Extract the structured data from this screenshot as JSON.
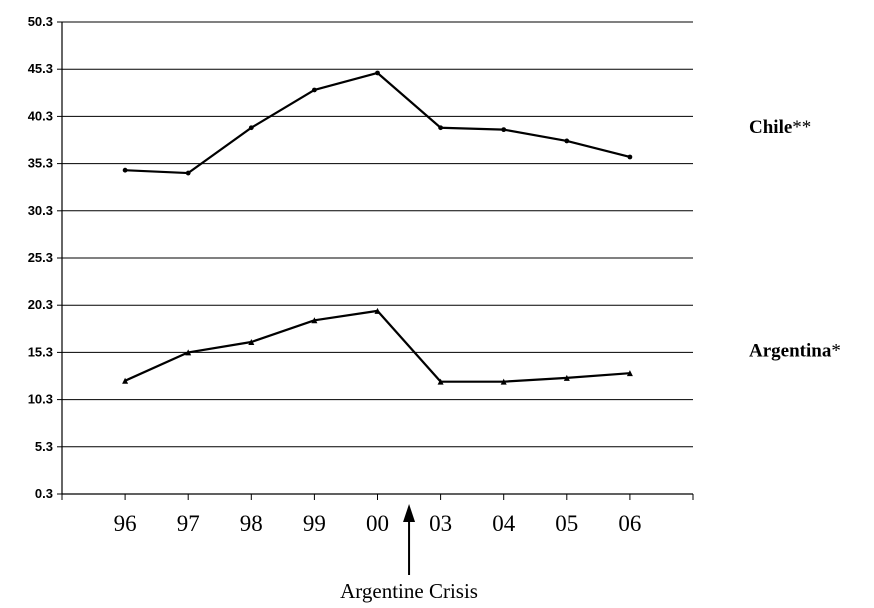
{
  "chart_data": {
    "type": "line",
    "title": "",
    "xlabel": "",
    "ylabel": "",
    "categories": [
      "96",
      "97",
      "98",
      "99",
      "00",
      "03",
      "04",
      "05",
      "06"
    ],
    "y_ticks": [
      "0.3",
      "5.3",
      "10.3",
      "15.3",
      "20.3",
      "25.3",
      "30.3",
      "35.3",
      "40.3",
      "45.3",
      "50.3"
    ],
    "ylim": [
      0.3,
      50.3
    ],
    "grid": true,
    "series": [
      {
        "name": "Chile",
        "name_suffix": "**",
        "marker": "circle",
        "color": "#000000",
        "values": [
          34.6,
          34.3,
          39.1,
          43.1,
          44.9,
          39.1,
          38.9,
          37.7,
          36.0
        ]
      },
      {
        "name": "Argentina",
        "name_suffix": "*",
        "marker": "triangle",
        "color": "#000000",
        "values": [
          12.3,
          15.3,
          16.4,
          18.7,
          19.7,
          12.2,
          12.2,
          12.6,
          13.1
        ]
      }
    ],
    "annotations": [
      {
        "text": "Argentine Crisis",
        "position_between": [
          "00",
          "03"
        ]
      }
    ]
  }
}
